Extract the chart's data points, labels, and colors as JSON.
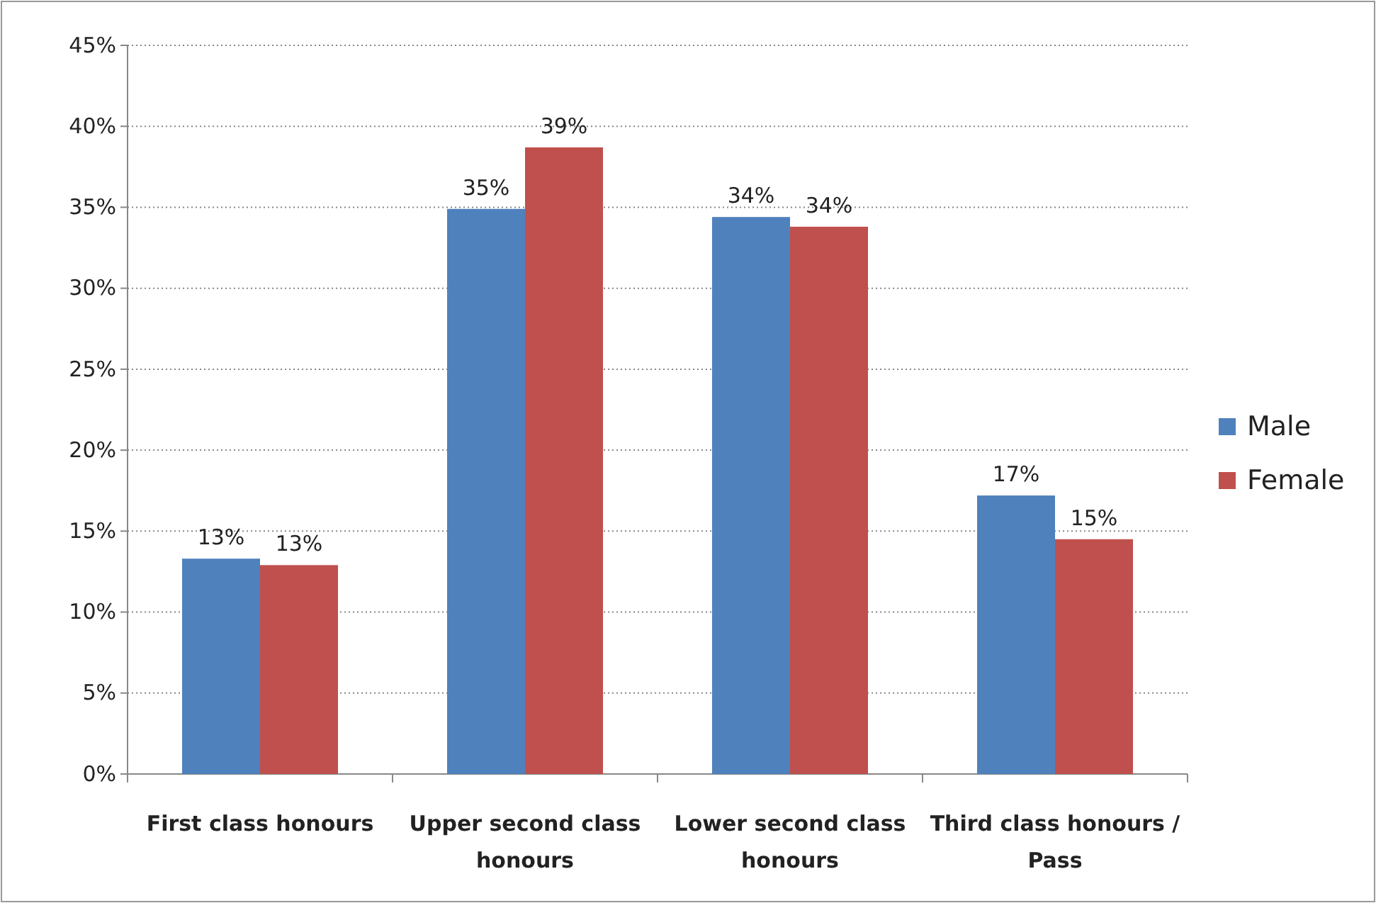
{
  "chart_data": {
    "type": "bar",
    "categories": [
      "First class honours",
      "Upper second class honours",
      "Lower second class honours",
      "Third class honours / Pass"
    ],
    "series": [
      {
        "name": "Male",
        "color": "#4f81bd",
        "values": [
          13.3,
          34.9,
          34.4,
          17.2
        ],
        "value_labels": [
          "13%",
          "35%",
          "34%",
          "17%"
        ]
      },
      {
        "name": "Female",
        "color": "#c0504d",
        "values": [
          12.9,
          38.7,
          33.8,
          14.5
        ],
        "value_labels": [
          "13%",
          "39%",
          "34%",
          "15%"
        ]
      }
    ],
    "ylim": [
      0,
      45
    ],
    "yticks": [
      {
        "value": 0,
        "label": "0%"
      },
      {
        "value": 5,
        "label": "5%"
      },
      {
        "value": 10,
        "label": "10%"
      },
      {
        "value": 15,
        "label": "15%"
      },
      {
        "value": 20,
        "label": "20%"
      },
      {
        "value": 25,
        "label": "25%"
      },
      {
        "value": 30,
        "label": "30%"
      },
      {
        "value": 35,
        "label": "35%"
      },
      {
        "value": 40,
        "label": "40%"
      },
      {
        "value": 45,
        "label": "45%"
      }
    ],
    "grid": "y",
    "legend": "right"
  }
}
